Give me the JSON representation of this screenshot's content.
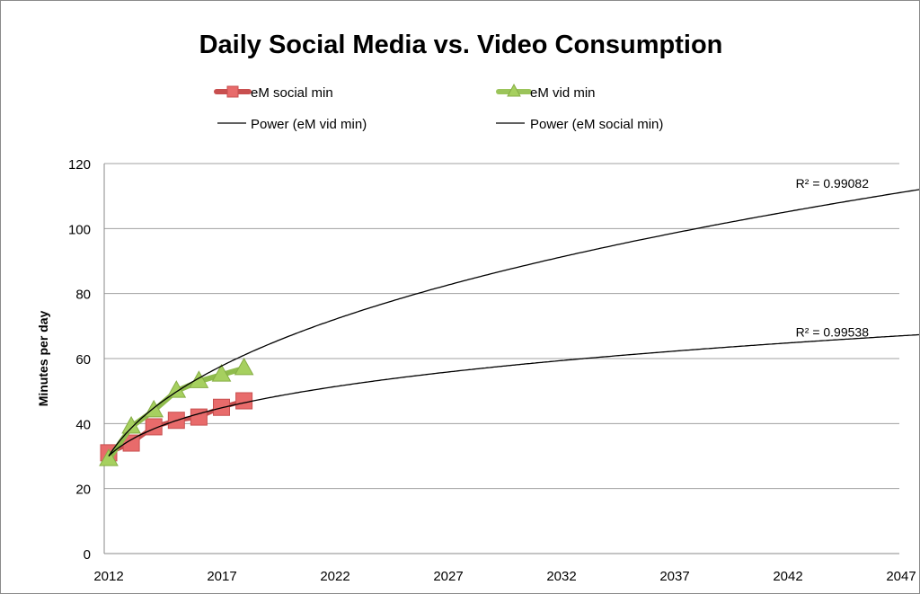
{
  "chart_data": {
    "type": "line",
    "title": "Daily Social Media vs. Video Consumption",
    "xlabel": "",
    "ylabel": "Minutes per day",
    "ylim": [
      0,
      120
    ],
    "yticks": [
      0,
      20,
      40,
      60,
      80,
      100,
      120
    ],
    "xticks": [
      2012,
      2017,
      2022,
      2027,
      2032,
      2037,
      2042,
      2047
    ],
    "grid": true,
    "legend_position": "top",
    "x": [
      2012,
      2013,
      2014,
      2015,
      2016,
      2017,
      2018
    ],
    "series": [
      {
        "name": "eM social min",
        "values": [
          31,
          34,
          39,
          41,
          42,
          45,
          47
        ],
        "color": "#e05a5a",
        "marker": "square"
      },
      {
        "name": "eM vid min",
        "values": [
          29,
          39,
          44,
          50,
          53,
          55,
          57
        ],
        "color": "#9bc45a",
        "marker": "triangle"
      }
    ],
    "trendlines": [
      {
        "name": "Power (eM vid min)",
        "type": "power",
        "coef": 30,
        "exponent": 0.365,
        "r2_label": "R² = 0.99082",
        "color": "#000000"
      },
      {
        "name": "Power (eM social min)",
        "type": "power",
        "coef": 30,
        "exponent": 0.224,
        "r2_label": "R² = 0.99538",
        "color": "#000000"
      }
    ]
  }
}
